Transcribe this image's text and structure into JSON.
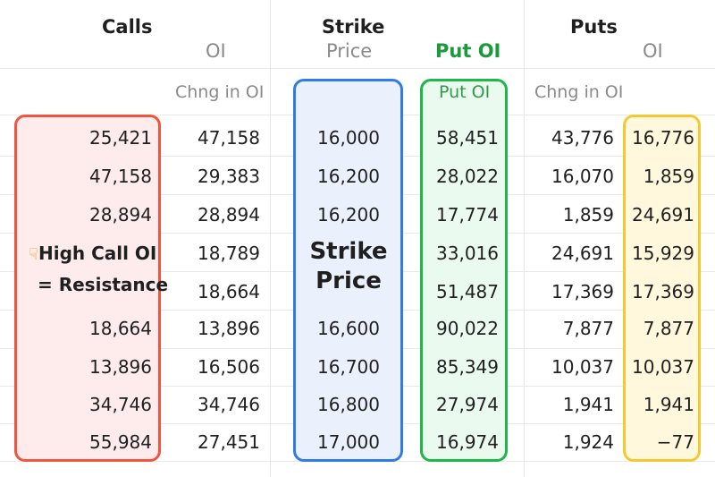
{
  "header": {
    "calls": "Calls",
    "calls_oi": "OI",
    "strike": "Strike",
    "strike_price": "Price",
    "put_oi": "Put OI",
    "puts": "Puts",
    "puts_oi": "OI",
    "calls_chng": "Chng in OI",
    "put_oi_sub": "Put OI",
    "puts_chng": "Chng in OI"
  },
  "annotations": {
    "high_call": "High Call OI",
    "resistance": "= Resistance",
    "strike_1": "Strike",
    "strike_2": "Price"
  },
  "colors": {
    "red_box": "#f0553f",
    "blue_box": "#2f7ce6",
    "green_box": "#1fb64a",
    "yellow_box": "#f5c831"
  },
  "rows": [
    {
      "call_oi": "25,421",
      "call_chng": "47,158",
      "strike": "16,000",
      "put_oi": "58,451",
      "put_chng": "43,776",
      "put_oi2": "16,776"
    },
    {
      "call_oi": "47,158",
      "call_chng": "29,383",
      "strike": "16,200",
      "put_oi": "28,022",
      "put_chng": "16,070",
      "put_oi2": "1,859"
    },
    {
      "call_oi": "28,894",
      "call_chng": "28,894",
      "strike": "16,200",
      "put_oi": "17,774",
      "put_chng": "1,859",
      "put_oi2": "24,691"
    },
    {
      "call_oi": "",
      "call_chng": "18,789",
      "strike": "",
      "put_oi": "33,016",
      "put_chng": "24,691",
      "put_oi2": "15,929"
    },
    {
      "call_oi": "",
      "call_chng": "18,664",
      "strike": "",
      "put_oi": "51,487",
      "put_chng": "17,369",
      "put_oi2": "17,369"
    },
    {
      "call_oi": "18,664",
      "call_chng": "13,896",
      "strike": "16,600",
      "put_oi": "90,022",
      "put_chng": "7,877",
      "put_oi2": "7,877"
    },
    {
      "call_oi": "13,896",
      "call_chng": "16,506",
      "strike": "16,700",
      "put_oi": "85,349",
      "put_chng": "10,037",
      "put_oi2": "10,037"
    },
    {
      "call_oi": "34,746",
      "call_chng": "34,746",
      "strike": "16,800",
      "put_oi": "27,974",
      "put_chng": "1,941",
      "put_oi2": "1,941"
    },
    {
      "call_oi": "55,984",
      "call_chng": "27,451",
      "strike": "17,000",
      "put_oi": "16,974",
      "put_chng": "1,924",
      "put_oi2": "−77"
    }
  ]
}
